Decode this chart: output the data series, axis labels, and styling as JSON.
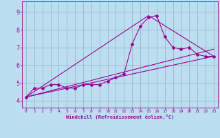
{
  "bg_color": "#bbdff0",
  "line_color": "#990099",
  "grid_color": "#99aabb",
  "xlabel": "Windchill (Refroidissement éolien,°C)",
  "xlim": [
    -0.5,
    23.5
  ],
  "ylim": [
    3.6,
    9.6
  ],
  "xticks": [
    0,
    1,
    2,
    3,
    4,
    5,
    6,
    7,
    8,
    9,
    10,
    11,
    12,
    13,
    14,
    15,
    16,
    17,
    18,
    19,
    20,
    21,
    22,
    23
  ],
  "yticks": [
    4,
    5,
    6,
    7,
    8,
    9
  ],
  "series1_x": [
    0,
    1,
    2,
    3,
    4,
    5,
    6,
    7,
    8,
    9,
    10,
    11,
    12,
    13,
    14,
    15,
    16,
    17,
    18,
    19,
    20,
    21,
    22,
    23
  ],
  "series1_y": [
    4.2,
    4.7,
    4.7,
    4.9,
    4.9,
    4.7,
    4.7,
    4.9,
    4.9,
    4.9,
    5.1,
    5.3,
    5.5,
    7.2,
    8.2,
    8.7,
    8.8,
    7.6,
    7.0,
    6.9,
    7.0,
    6.6,
    6.5,
    6.5
  ],
  "series2_x": [
    0,
    23
  ],
  "series2_y": [
    4.2,
    6.5
  ],
  "series3_x": [
    0,
    15,
    23
  ],
  "series3_y": [
    4.2,
    8.8,
    6.5
  ],
  "series4_x": [
    0,
    23
  ],
  "series4_y": [
    4.2,
    6.9
  ]
}
